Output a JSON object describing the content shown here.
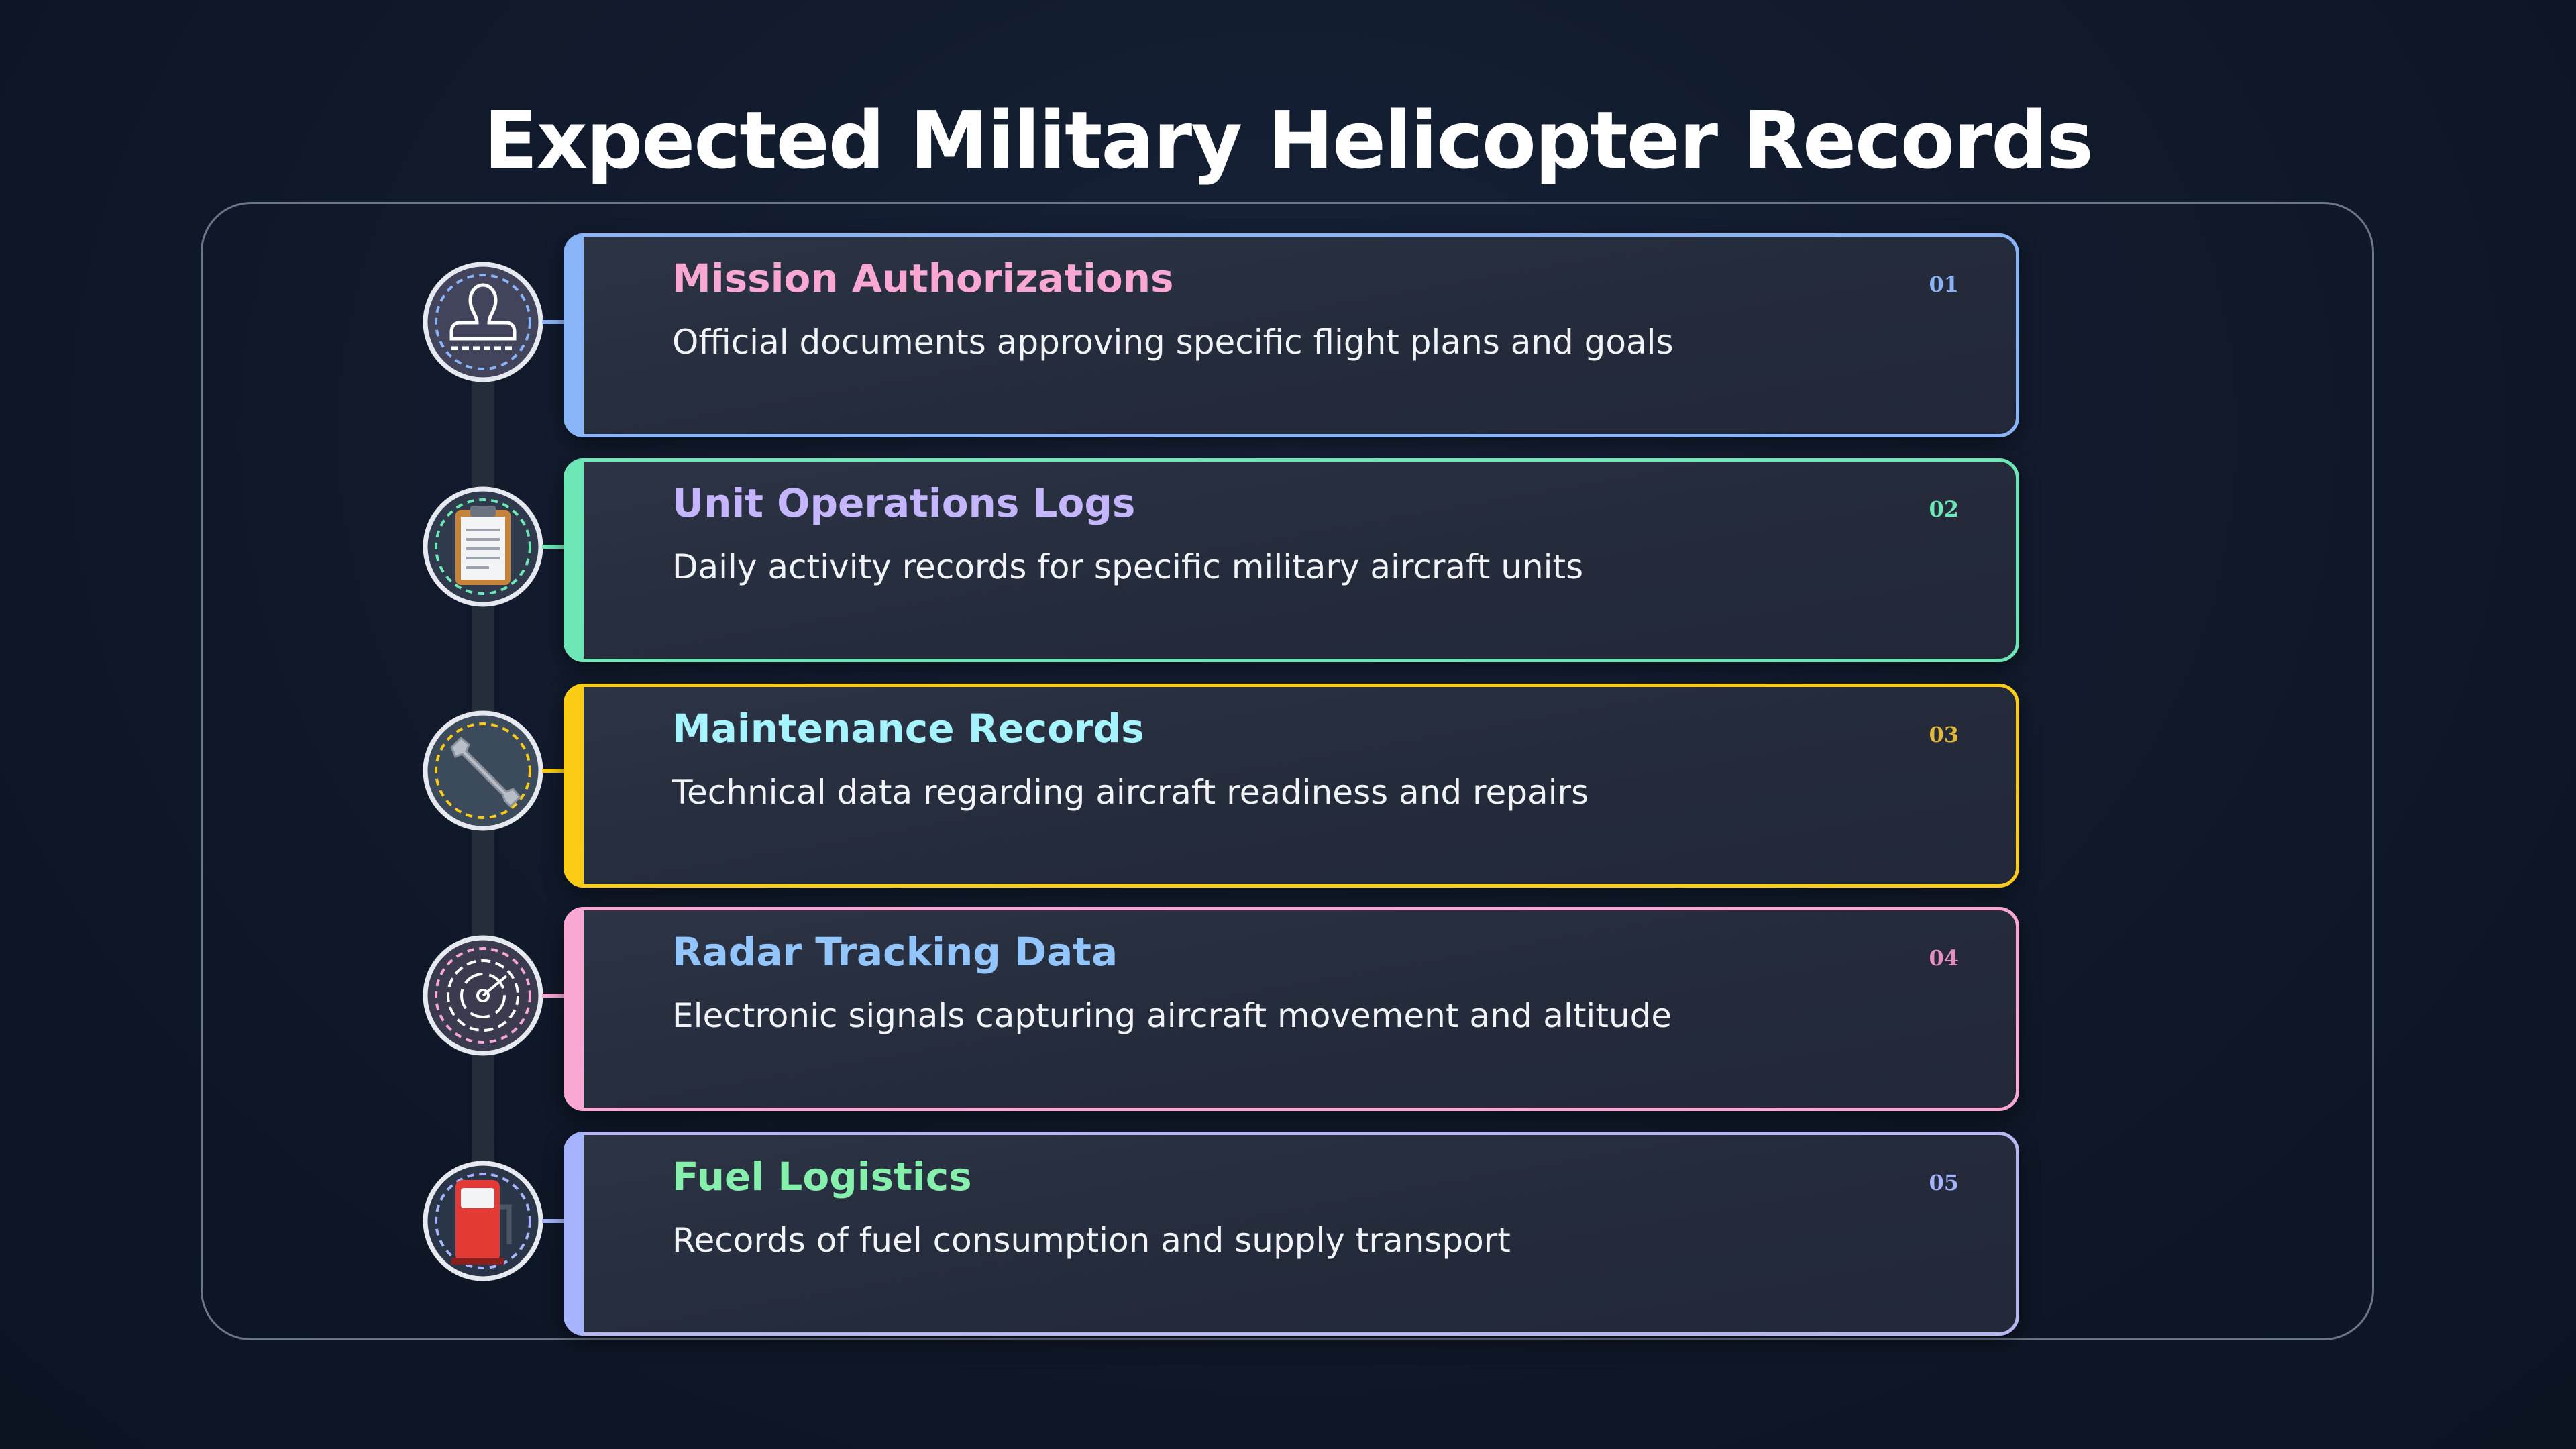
{
  "header": {
    "title": "Expected Military Helicopter Records"
  },
  "items": [
    {
      "number": "01",
      "title": "Mission Authorizations",
      "description": "Official documents approving specific flight plans and goals"
    },
    {
      "number": "02",
      "title": "Unit Operations Logs",
      "description": "Daily activity records for specific military aircraft units"
    },
    {
      "number": "03",
      "title": "Maintenance Records",
      "description": "Technical data regarding aircraft readiness and repairs"
    },
    {
      "number": "04",
      "title": "Radar Tracking Data",
      "description": "Electronic signals capturing aircraft movement and altitude"
    },
    {
      "number": "05",
      "title": "Fuel Logistics",
      "description": "Records of fuel consumption and supply transport"
    }
  ]
}
